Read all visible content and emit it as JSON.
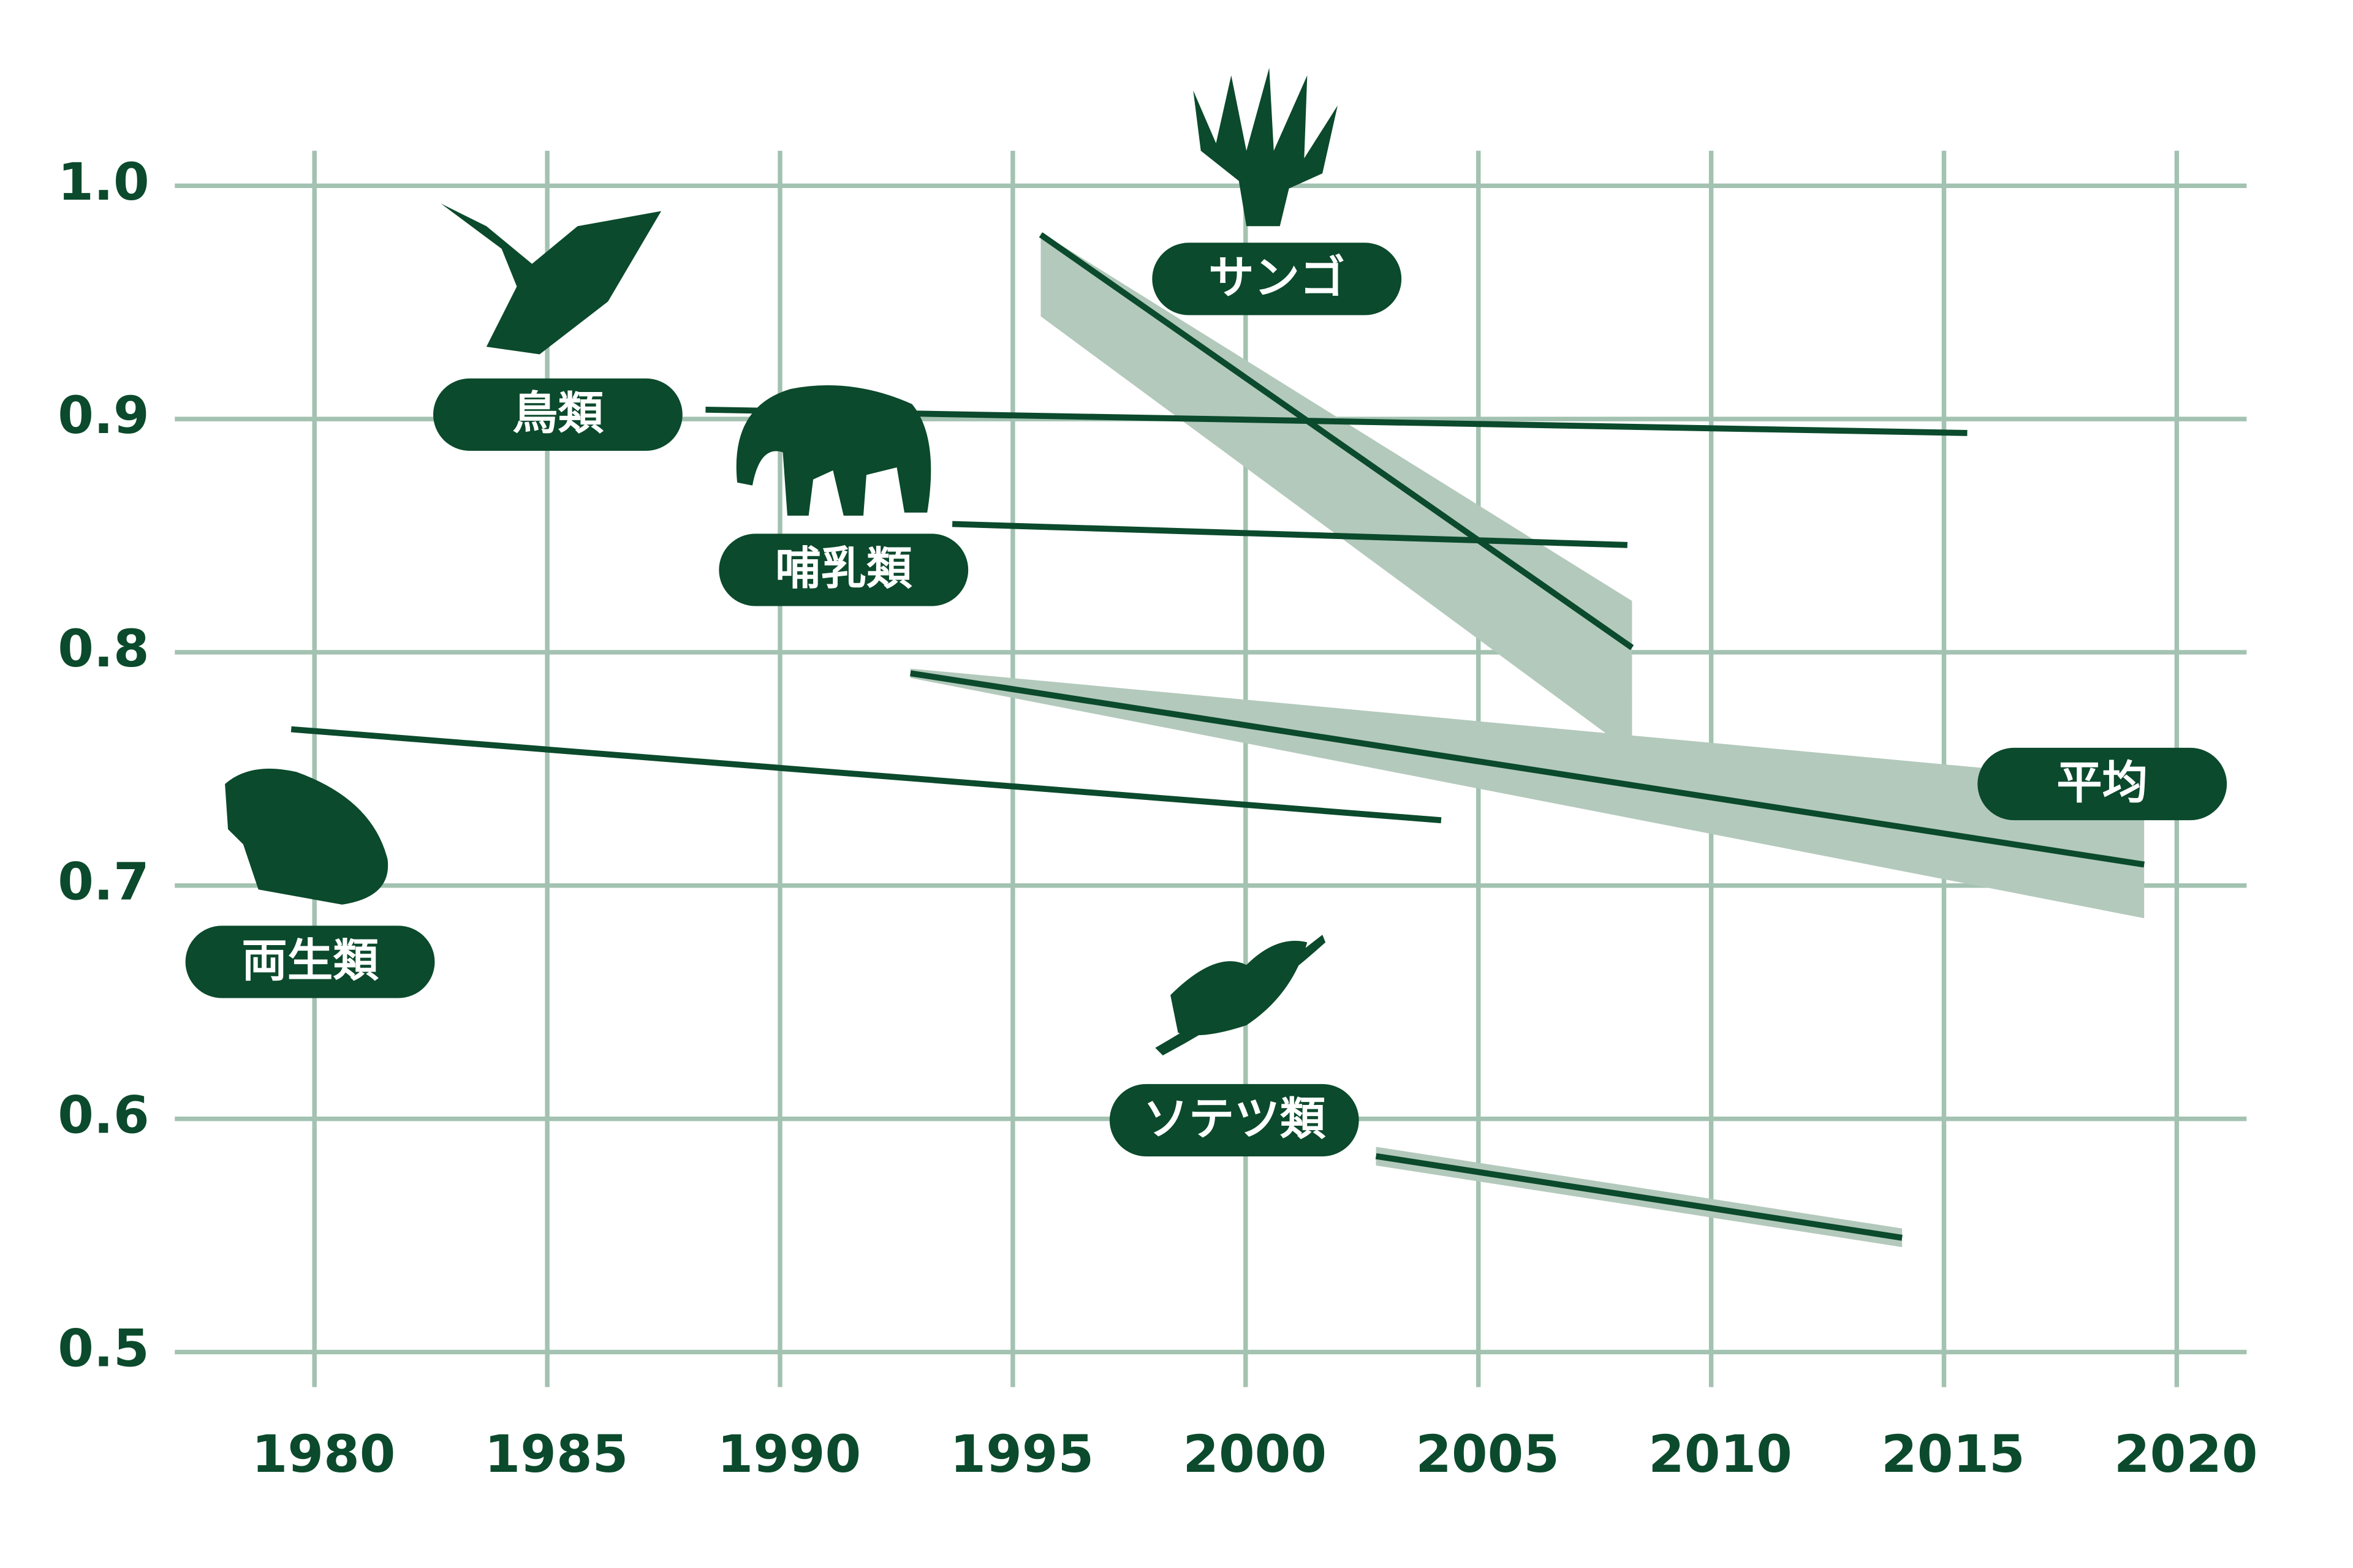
{
  "chart_data": {
    "type": "line",
    "xlim": [
      1977,
      2021.5
    ],
    "ylim": [
      0.485,
      1.015
    ],
    "xticks": [
      1980,
      1985,
      1990,
      1995,
      2000,
      2005,
      2010,
      2015,
      2020
    ],
    "yticks": [
      0.5,
      0.6,
      0.7,
      0.8,
      0.9,
      {
        "value": 1,
        "label": "1.0"
      }
    ],
    "grid": true,
    "color": "#0b4a2c",
    "band_color": "#b3c9bc",
    "grid_color": "#a3c2b1",
    "series": [
      {
        "name": "鳥類",
        "x": [
          1988.4,
          2015.5
        ],
        "values": [
          0.904,
          0.894
        ]
      },
      {
        "name": "哺乳類",
        "x": [
          1993.7,
          2008.2
        ],
        "values": [
          0.855,
          0.846
        ]
      },
      {
        "name": "サンゴ",
        "x": [
          1995.6,
          2008.3
        ],
        "values": [
          0.979,
          0.802
        ],
        "upper": [
          0.98,
          0.822
        ],
        "lower": [
          0.944,
          0.757
        ]
      },
      {
        "name": "平均",
        "x": [
          1992.8,
          2019.3
        ],
        "values": [
          0.791,
          0.709
        ],
        "upper": [
          0.793,
          0.744
        ],
        "lower": [
          0.789,
          0.686
        ]
      },
      {
        "name": "両生類",
        "x": [
          1979.5,
          2004.2
        ],
        "values": [
          0.767,
          0.728
        ]
      },
      {
        "name": "ソテツ類",
        "x": [
          2002.8,
          2014.1
        ],
        "values": [
          0.584,
          0.549
        ],
        "upper": [
          0.588,
          0.553
        ],
        "lower": [
          0.58,
          0.545
        ]
      }
    ]
  }
}
